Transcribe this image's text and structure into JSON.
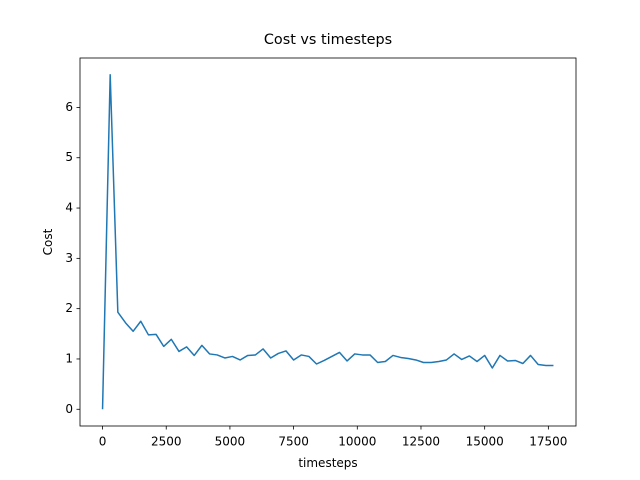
{
  "chart_data": {
    "type": "line",
    "title": "Cost vs timesteps",
    "xlabel": "timesteps",
    "ylabel": "Cost",
    "x": [
      0,
      300,
      600,
      900,
      1200,
      1500,
      1800,
      2100,
      2400,
      2700,
      3000,
      3300,
      3600,
      3900,
      4200,
      4500,
      4800,
      5100,
      5400,
      5700,
      6000,
      6300,
      6600,
      6900,
      7200,
      7500,
      7800,
      8100,
      8400,
      8700,
      9000,
      9300,
      9600,
      9900,
      10200,
      10500,
      10800,
      11100,
      11400,
      11700,
      12000,
      12300,
      12600,
      12900,
      13200,
      13500,
      13800,
      14100,
      14400,
      14700,
      15000,
      15300,
      15600,
      15900,
      16200,
      16500,
      16800,
      17100,
      17400,
      17700
    ],
    "series": [
      {
        "color": "#1f77b4",
        "values": [
          0,
          6.65,
          1.93,
          1.72,
          1.55,
          1.75,
          1.48,
          1.49,
          1.25,
          1.39,
          1.15,
          1.24,
          1.07,
          1.27,
          1.1,
          1.08,
          1.02,
          1.05,
          0.98,
          1.07,
          1.08,
          1.2,
          1.02,
          1.11,
          1.16,
          0.98,
          1.08,
          1.05,
          0.9,
          0.97,
          1.05,
          1.13,
          0.96,
          1.1,
          1.08,
          1.08,
          0.93,
          0.95,
          1.07,
          1.03,
          1.01,
          0.98,
          0.93,
          0.93,
          0.95,
          0.98,
          1.1,
          0.99,
          1.06,
          0.95,
          1.07,
          0.82,
          1.07,
          0.96,
          0.97,
          0.91,
          1.07,
          0.89,
          0.87,
          0.87
        ]
      }
    ],
    "xlim": [
      -885,
      18585
    ],
    "ylim": [
      -0.3325,
      6.9825
    ],
    "xticks": [
      0,
      2500,
      5000,
      7500,
      10000,
      12500,
      15000,
      17500
    ],
    "yticks": [
      0,
      1,
      2,
      3,
      4,
      5,
      6
    ]
  }
}
